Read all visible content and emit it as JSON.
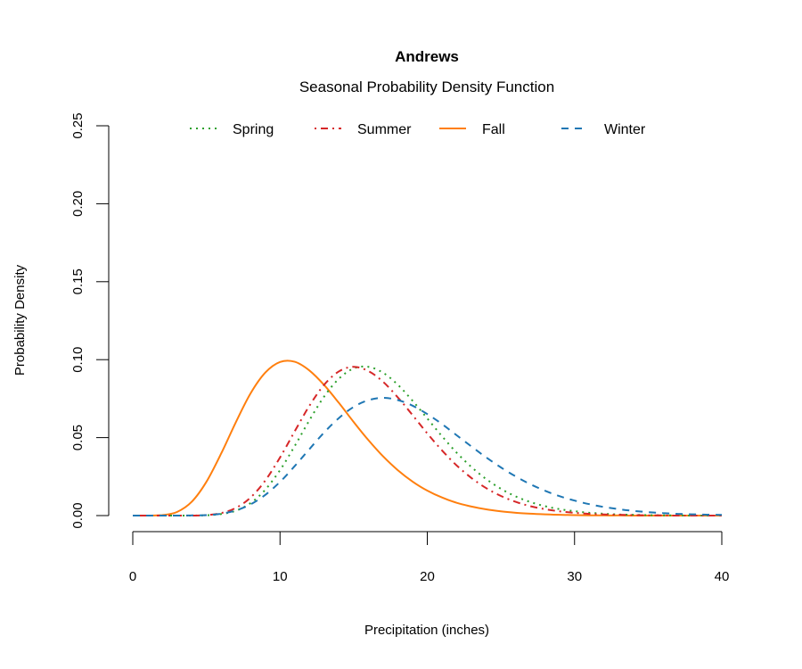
{
  "chart_data": {
    "type": "line",
    "title": "Andrews",
    "subtitle": "Seasonal Probability Density Function",
    "xlabel": "Precipitation (inches)",
    "ylabel": "Probability Density",
    "xlim": [
      0,
      40
    ],
    "ylim": [
      0,
      0.25
    ],
    "xticks": [
      0,
      10,
      20,
      30,
      40
    ],
    "xtick_labels": [
      "0",
      "10",
      "20",
      "30",
      "40"
    ],
    "yticks": [
      0,
      0.05,
      0.1,
      0.15,
      0.2,
      0.25
    ],
    "ytick_labels": [
      "0.00",
      "0.05",
      "0.10",
      "0.15",
      "0.20",
      "0.25"
    ],
    "grid": false,
    "legend_position": "top",
    "x": [
      0,
      1,
      2,
      3,
      4,
      5,
      6,
      7,
      8,
      9,
      10,
      11,
      12,
      13,
      14,
      15,
      16,
      17,
      18,
      19,
      20,
      21,
      22,
      23,
      24,
      25,
      26,
      27,
      28,
      29,
      30,
      31,
      32,
      33,
      34,
      35,
      36,
      37,
      38,
      39,
      40
    ],
    "series": [
      {
        "name": "Spring",
        "color": "#2ca02c",
        "style": "dotted",
        "values": [
          0,
          0,
          0,
          0,
          0,
          0.0002,
          0.001,
          0.0031,
          0.008,
          0.0166,
          0.0292,
          0.0447,
          0.0612,
          0.0764,
          0.0878,
          0.0944,
          0.0954,
          0.0916,
          0.0839,
          0.0736,
          0.0623,
          0.0509,
          0.0403,
          0.0311,
          0.0234,
          0.0172,
          0.0123,
          0.0087,
          0.006,
          0.0041,
          0.0028,
          0.0018,
          0.0012,
          0.0007,
          0.0005,
          0.0003,
          0.0002,
          0.0001,
          0,
          0,
          0
        ]
      },
      {
        "name": "Summer",
        "color": "#d62728",
        "style": "dotdash",
        "values": [
          0,
          0,
          0,
          0,
          0,
          0.0003,
          0.0016,
          0.0049,
          0.0116,
          0.0225,
          0.0373,
          0.0541,
          0.0705,
          0.0839,
          0.0925,
          0.0954,
          0.0927,
          0.0858,
          0.0758,
          0.0644,
          0.0527,
          0.0418,
          0.0321,
          0.0241,
          0.0176,
          0.0126,
          0.0088,
          0.006,
          0.0041,
          0.0027,
          0.0018,
          0.0011,
          0.0007,
          0.0005,
          0.0003,
          0.0002,
          0.0001,
          0,
          0,
          0,
          0
        ]
      },
      {
        "name": "Fall",
        "color": "#ff7f0e",
        "style": "solid",
        "values": [
          0,
          0,
          0.0003,
          0.0023,
          0.0088,
          0.0216,
          0.0397,
          0.0599,
          0.0784,
          0.0917,
          0.0985,
          0.0986,
          0.093,
          0.0837,
          0.0722,
          0.06,
          0.0484,
          0.038,
          0.0291,
          0.0218,
          0.016,
          0.0116,
          0.0082,
          0.0058,
          0.004,
          0.0027,
          0.0018,
          0.0012,
          0.0008,
          0.0005,
          0.0003,
          0.0002,
          0.0001,
          0.0001,
          0,
          0,
          0,
          0,
          0,
          0,
          0
        ]
      },
      {
        "name": "Winter",
        "color": "#1f77b4",
        "style": "dashed",
        "values": [
          0,
          0,
          0,
          0,
          0.0001,
          0.0003,
          0.0012,
          0.0033,
          0.0072,
          0.0133,
          0.0216,
          0.0318,
          0.0427,
          0.0533,
          0.0626,
          0.0697,
          0.074,
          0.0755,
          0.0741,
          0.0705,
          0.0651,
          0.0587,
          0.0515,
          0.0443,
          0.0373,
          0.0309,
          0.0251,
          0.0201,
          0.0159,
          0.0124,
          0.0096,
          0.0073,
          0.0055,
          0.0041,
          0.003,
          0.0022,
          0.0016,
          0.0011,
          0.0008,
          0.0006,
          0.0004
        ]
      }
    ]
  }
}
